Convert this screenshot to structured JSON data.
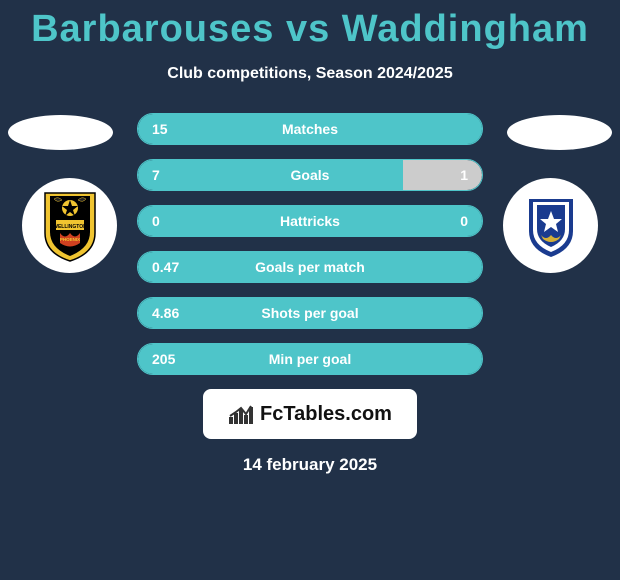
{
  "title": "Barbarouses vs Waddingham",
  "subtitle": "Club competitions, Season 2024/2025",
  "date": "14 february 2025",
  "colors": {
    "background": "#213148",
    "accent": "#4ec5c9",
    "bar_right": "#cccccc",
    "text": "#ffffff"
  },
  "stats": [
    {
      "label": "Matches",
      "left_val": "15",
      "right_val": "",
      "left_width_pct": 100,
      "right_width_pct": 0
    },
    {
      "label": "Goals",
      "left_val": "7",
      "right_val": "1",
      "left_width_pct": 77,
      "right_width_pct": 23
    },
    {
      "label": "Hattricks",
      "left_val": "0",
      "right_val": "0",
      "left_width_pct": 100,
      "right_width_pct": 0
    },
    {
      "label": "Goals per match",
      "left_val": "0.47",
      "right_val": "",
      "left_width_pct": 100,
      "right_width_pct": 0
    },
    {
      "label": "Shots per goal",
      "left_val": "4.86",
      "right_val": "",
      "left_width_pct": 100,
      "right_width_pct": 0
    },
    {
      "label": "Min per goal",
      "left_val": "205",
      "right_val": "",
      "left_width_pct": 100,
      "right_width_pct": 0
    }
  ],
  "fctables_text": "FcTables.com"
}
